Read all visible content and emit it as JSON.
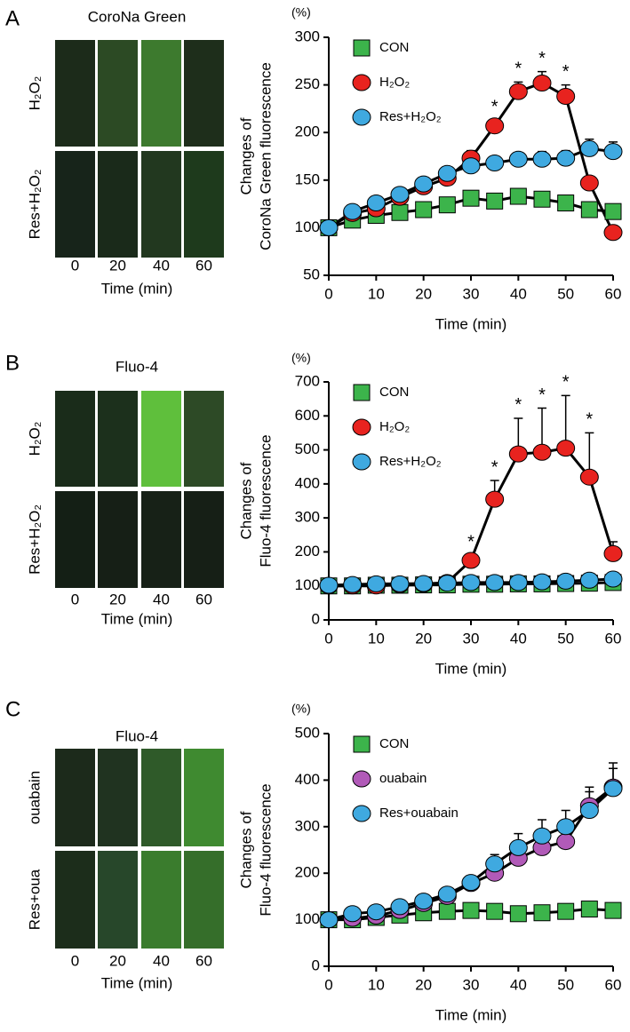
{
  "panels": [
    {
      "letter": "A",
      "image_title": "CoroNa Green",
      "row_labels": [
        "H₂O₂",
        "Res+H₂O₂"
      ],
      "col_labels": [
        "0",
        "20",
        "40",
        "60"
      ],
      "xlabel": "Time (min)"
    },
    {
      "letter": "B",
      "image_title": "Fluo-4",
      "row_labels": [
        "H₂O₂",
        "Res+H₂O₂"
      ],
      "col_labels": [
        "0",
        "20",
        "40",
        "60"
      ],
      "xlabel": "Time (min)"
    },
    {
      "letter": "C",
      "image_title": "Fluo-4",
      "row_labels": [
        "ouabain",
        "Res+oua"
      ],
      "col_labels": [
        "0",
        "20",
        "40",
        "60"
      ],
      "xlabel": "Time (min)"
    }
  ],
  "chart_data": [
    {
      "type": "line",
      "unit_label": "(%)",
      "ylabel": [
        "Changes of",
        "CoroNa Green fluorescence"
      ],
      "xlabel": "Time (min)",
      "x": [
        0,
        5,
        10,
        15,
        20,
        25,
        30,
        35,
        40,
        45,
        50,
        55,
        60
      ],
      "xlim": [
        0,
        60
      ],
      "xticks": [
        0,
        10,
        20,
        30,
        40,
        50,
        60
      ],
      "ylim": [
        50,
        300
      ],
      "yticks": [
        50,
        100,
        150,
        200,
        250,
        300
      ],
      "legend": "upper left",
      "series": [
        {
          "name": "CON",
          "color": "#3cb44b",
          "marker": "square",
          "values": [
            100,
            108,
            113,
            116,
            119,
            124,
            131,
            128,
            133,
            130,
            126,
            119,
            117
          ],
          "errors": [
            0,
            2,
            2,
            2,
            3,
            3,
            4,
            4,
            4,
            4,
            4,
            3,
            3
          ]
        },
        {
          "name": "H₂O₂",
          "color": "#e8231f",
          "marker": "circle",
          "values": [
            100,
            115,
            120,
            132,
            143,
            152,
            173,
            207,
            243,
            252,
            238,
            147,
            95
          ],
          "errors": [
            0,
            3,
            3,
            4,
            4,
            5,
            8,
            6,
            10,
            12,
            12,
            6,
            4
          ]
        },
        {
          "name": "Res+H₂O₂",
          "color": "#3fa9e0",
          "marker": "circle",
          "values": [
            100,
            117,
            126,
            135,
            146,
            157,
            165,
            168,
            172,
            172,
            173,
            183,
            180
          ],
          "errors": [
            0,
            3,
            3,
            3,
            4,
            5,
            6,
            6,
            7,
            8,
            8,
            10,
            10
          ]
        }
      ],
      "annotations": [
        {
          "text": "*",
          "x": 35
        },
        {
          "text": "*",
          "x": 40
        },
        {
          "text": "*",
          "x": 45
        },
        {
          "text": "*",
          "x": 50
        }
      ]
    },
    {
      "type": "line",
      "unit_label": "(%)",
      "ylabel": [
        "Changes of",
        "Fluo-4 fluorescence"
      ],
      "xlabel": "Time (min)",
      "x": [
        0,
        5,
        10,
        15,
        20,
        25,
        30,
        35,
        40,
        45,
        50,
        55,
        60
      ],
      "xlim": [
        0,
        60
      ],
      "xticks": [
        0,
        10,
        20,
        30,
        40,
        50,
        60
      ],
      "ylim": [
        0,
        700
      ],
      "yticks": [
        0,
        100,
        200,
        300,
        400,
        500,
        600,
        700
      ],
      "legend": "upper left",
      "series": [
        {
          "name": "CON",
          "color": "#3cb44b",
          "marker": "square",
          "values": [
            100,
            100,
            102,
            102,
            103,
            103,
            105,
            105,
            106,
            106,
            107,
            108,
            110
          ],
          "errors": [
            0,
            4,
            4,
            4,
            4,
            4,
            5,
            5,
            5,
            5,
            5,
            5,
            5
          ]
        },
        {
          "name": "H₂O₂",
          "color": "#e8231f",
          "marker": "circle",
          "values": [
            100,
            100,
            100,
            103,
            105,
            110,
            175,
            355,
            488,
            493,
            505,
            420,
            195
          ],
          "errors": [
            0,
            3,
            3,
            5,
            5,
            8,
            15,
            55,
            105,
            130,
            155,
            130,
            35
          ]
        },
        {
          "name": "Res+H₂O₂",
          "color": "#3fa9e0",
          "marker": "circle",
          "values": [
            102,
            104,
            106,
            106,
            107,
            108,
            110,
            110,
            110,
            112,
            114,
            117,
            120
          ],
          "errors": [
            0,
            5,
            5,
            5,
            5,
            5,
            5,
            5,
            5,
            6,
            6,
            8,
            15
          ]
        }
      ],
      "annotations": [
        {
          "text": "*",
          "x": 30
        },
        {
          "text": "*",
          "x": 35
        },
        {
          "text": "*",
          "x": 40
        },
        {
          "text": "*",
          "x": 45
        },
        {
          "text": "*",
          "x": 50
        },
        {
          "text": "*",
          "x": 55
        }
      ]
    },
    {
      "type": "line",
      "unit_label": "(%)",
      "ylabel": [
        "Changes of",
        "Fluo-4 fluorescence"
      ],
      "xlabel": "Time (min)",
      "x": [
        0,
        5,
        10,
        15,
        20,
        25,
        30,
        35,
        40,
        45,
        50,
        55,
        60
      ],
      "xlim": [
        0,
        60
      ],
      "xticks": [
        0,
        10,
        20,
        30,
        40,
        50,
        60
      ],
      "ylim": [
        0,
        500
      ],
      "yticks": [
        0,
        100,
        200,
        300,
        400,
        500
      ],
      "legend": "upper left",
      "series": [
        {
          "name": "CON",
          "color": "#3cb44b",
          "marker": "square",
          "values": [
            100,
            100,
            105,
            110,
            115,
            118,
            120,
            118,
            113,
            115,
            118,
            123,
            120
          ],
          "errors": [
            0,
            4,
            4,
            4,
            4,
            4,
            4,
            4,
            4,
            4,
            4,
            4,
            4
          ]
        },
        {
          "name": "ouabain",
          "color": "#b15ab8",
          "marker": "circle",
          "values": [
            100,
            103,
            108,
            120,
            135,
            150,
            178,
            200,
            232,
            255,
            268,
            345,
            385
          ],
          "errors": [
            0,
            5,
            5,
            6,
            7,
            8,
            10,
            15,
            20,
            20,
            20,
            30,
            40
          ]
        },
        {
          "name": "Res+ouabain",
          "color": "#3fa9e0",
          "marker": "circle",
          "values": [
            100,
            113,
            117,
            128,
            140,
            155,
            180,
            220,
            255,
            280,
            300,
            335,
            382
          ],
          "errors": [
            0,
            5,
            5,
            6,
            7,
            8,
            10,
            20,
            30,
            35,
            35,
            50,
            55
          ]
        }
      ],
      "annotations": []
    }
  ]
}
